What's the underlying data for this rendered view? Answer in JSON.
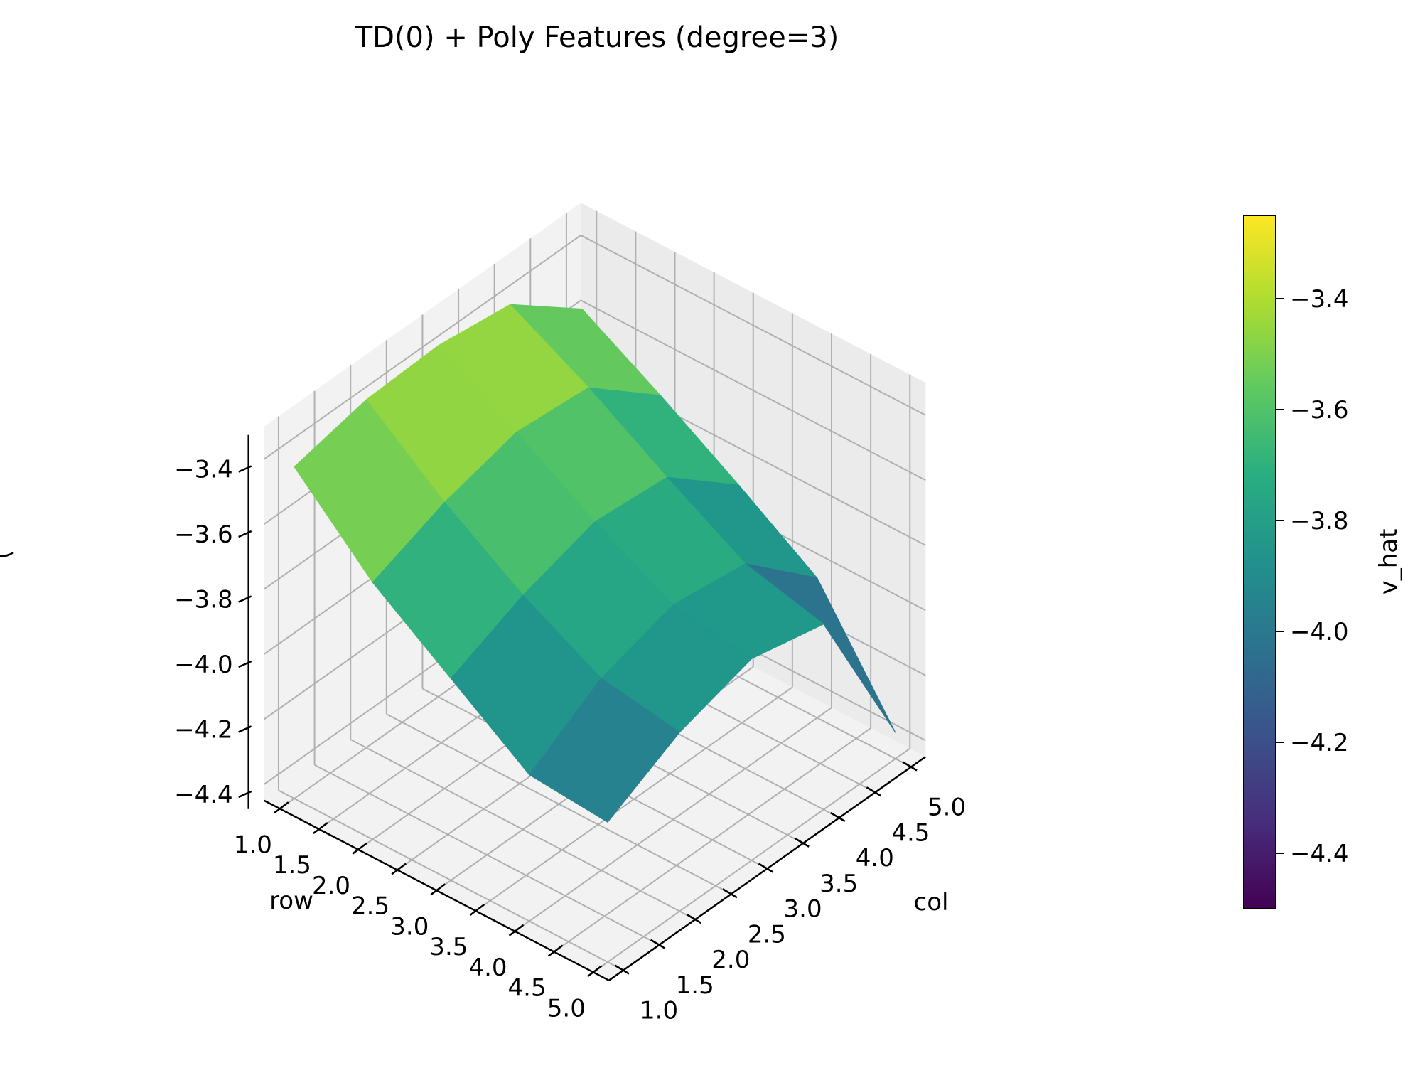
{
  "chart_data": {
    "type": "surface",
    "title": "TD(0) + Poly Features (degree=3)",
    "xlabel": "row",
    "ylabel": "col",
    "zlabel": "(",
    "colorbar_label": "v_hat",
    "colormap": "viridis",
    "rows": [
      1,
      2,
      3,
      4,
      5
    ],
    "cols": [
      1,
      2,
      3,
      4,
      5
    ],
    "z": [
      [
        -3.43,
        -3.38,
        -3.37,
        -3.4,
        -3.57
      ],
      [
        -3.66,
        -3.57,
        -3.51,
        -3.53,
        -3.71
      ],
      [
        -3.83,
        -3.73,
        -3.66,
        -3.68,
        -3.86
      ],
      [
        -4.0,
        -3.86,
        -3.79,
        -3.82,
        -4.02
      ],
      [
        -4.02,
        -3.9,
        -3.83,
        -3.88,
        -4.37
      ]
    ],
    "x_ticks": [
      "1.0",
      "1.5",
      "2.0",
      "2.5",
      "3.0",
      "3.5",
      "4.0",
      "4.5",
      "5.0"
    ],
    "y_ticks": [
      "1.0",
      "1.5",
      "2.0",
      "2.5",
      "3.0",
      "3.5",
      "4.0",
      "4.5",
      "5.0"
    ],
    "z_ticks": [
      "−3.4",
      "−3.6",
      "−3.8",
      "−4.0",
      "−4.2",
      "−4.4"
    ],
    "colorbar_ticks": [
      "−3.4",
      "−3.6",
      "−3.8",
      "−4.0",
      "−4.2",
      "−4.4"
    ],
    "z_range": [
      -4.45,
      -3.3
    ],
    "colorbar_range": [
      -4.5,
      -3.25
    ],
    "grid": true,
    "legend": "colorbar right"
  }
}
